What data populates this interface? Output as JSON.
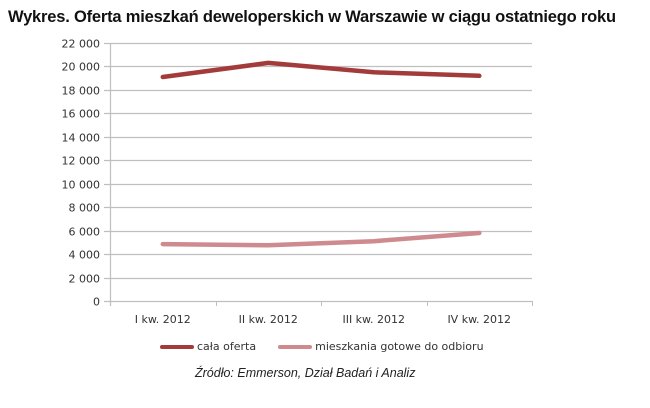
{
  "title": "Wykres. Oferta mieszkań deweloperskich w Warszawie w ciągu ostatniego roku",
  "source": "Źródło: Emmerson, Dział Badań i Analiz",
  "colors": {
    "cala_oferta": "#A33B3B",
    "gotowe": "#CF8A8F",
    "grid": "#BFBFBF",
    "axis": "#BFBFBF"
  },
  "legend": {
    "items": [
      {
        "label": "cała oferta",
        "color": "#A33B3B"
      },
      {
        "label": "mieszkania gotowe do odbioru",
        "color": "#CF8A8F"
      }
    ]
  },
  "chart_data": {
    "type": "line",
    "title": "Wykres. Oferta mieszkań deweloperskich w Warszawie w ciągu ostatniego roku",
    "xlabel": "",
    "ylabel": "",
    "categories": [
      "I kw. 2012",
      "II kw. 2012",
      "III kw. 2012",
      "IV kw. 2012"
    ],
    "series": [
      {
        "name": "cała oferta",
        "values": [
          19100,
          20300,
          19500,
          19200
        ],
        "color": "#A33B3B"
      },
      {
        "name": "mieszkania gotowe do odbioru",
        "values": [
          4850,
          4750,
          5100,
          5800
        ],
        "color": "#CF8A8F"
      }
    ],
    "ylim": [
      0,
      22000
    ],
    "yticks": [
      0,
      2000,
      4000,
      6000,
      8000,
      10000,
      12000,
      14000,
      16000,
      18000,
      20000,
      22000
    ],
    "ytick_labels": [
      "0",
      "2 000",
      "4 000",
      "6 000",
      "8 000",
      "10 000",
      "12 000",
      "14 000",
      "16 000",
      "18 000",
      "20 000",
      "22 000"
    ],
    "grid": true,
    "legend_position": "bottom",
    "annotations": [
      "Źródło: Emmerson, Dział Badań i Analiz"
    ]
  }
}
